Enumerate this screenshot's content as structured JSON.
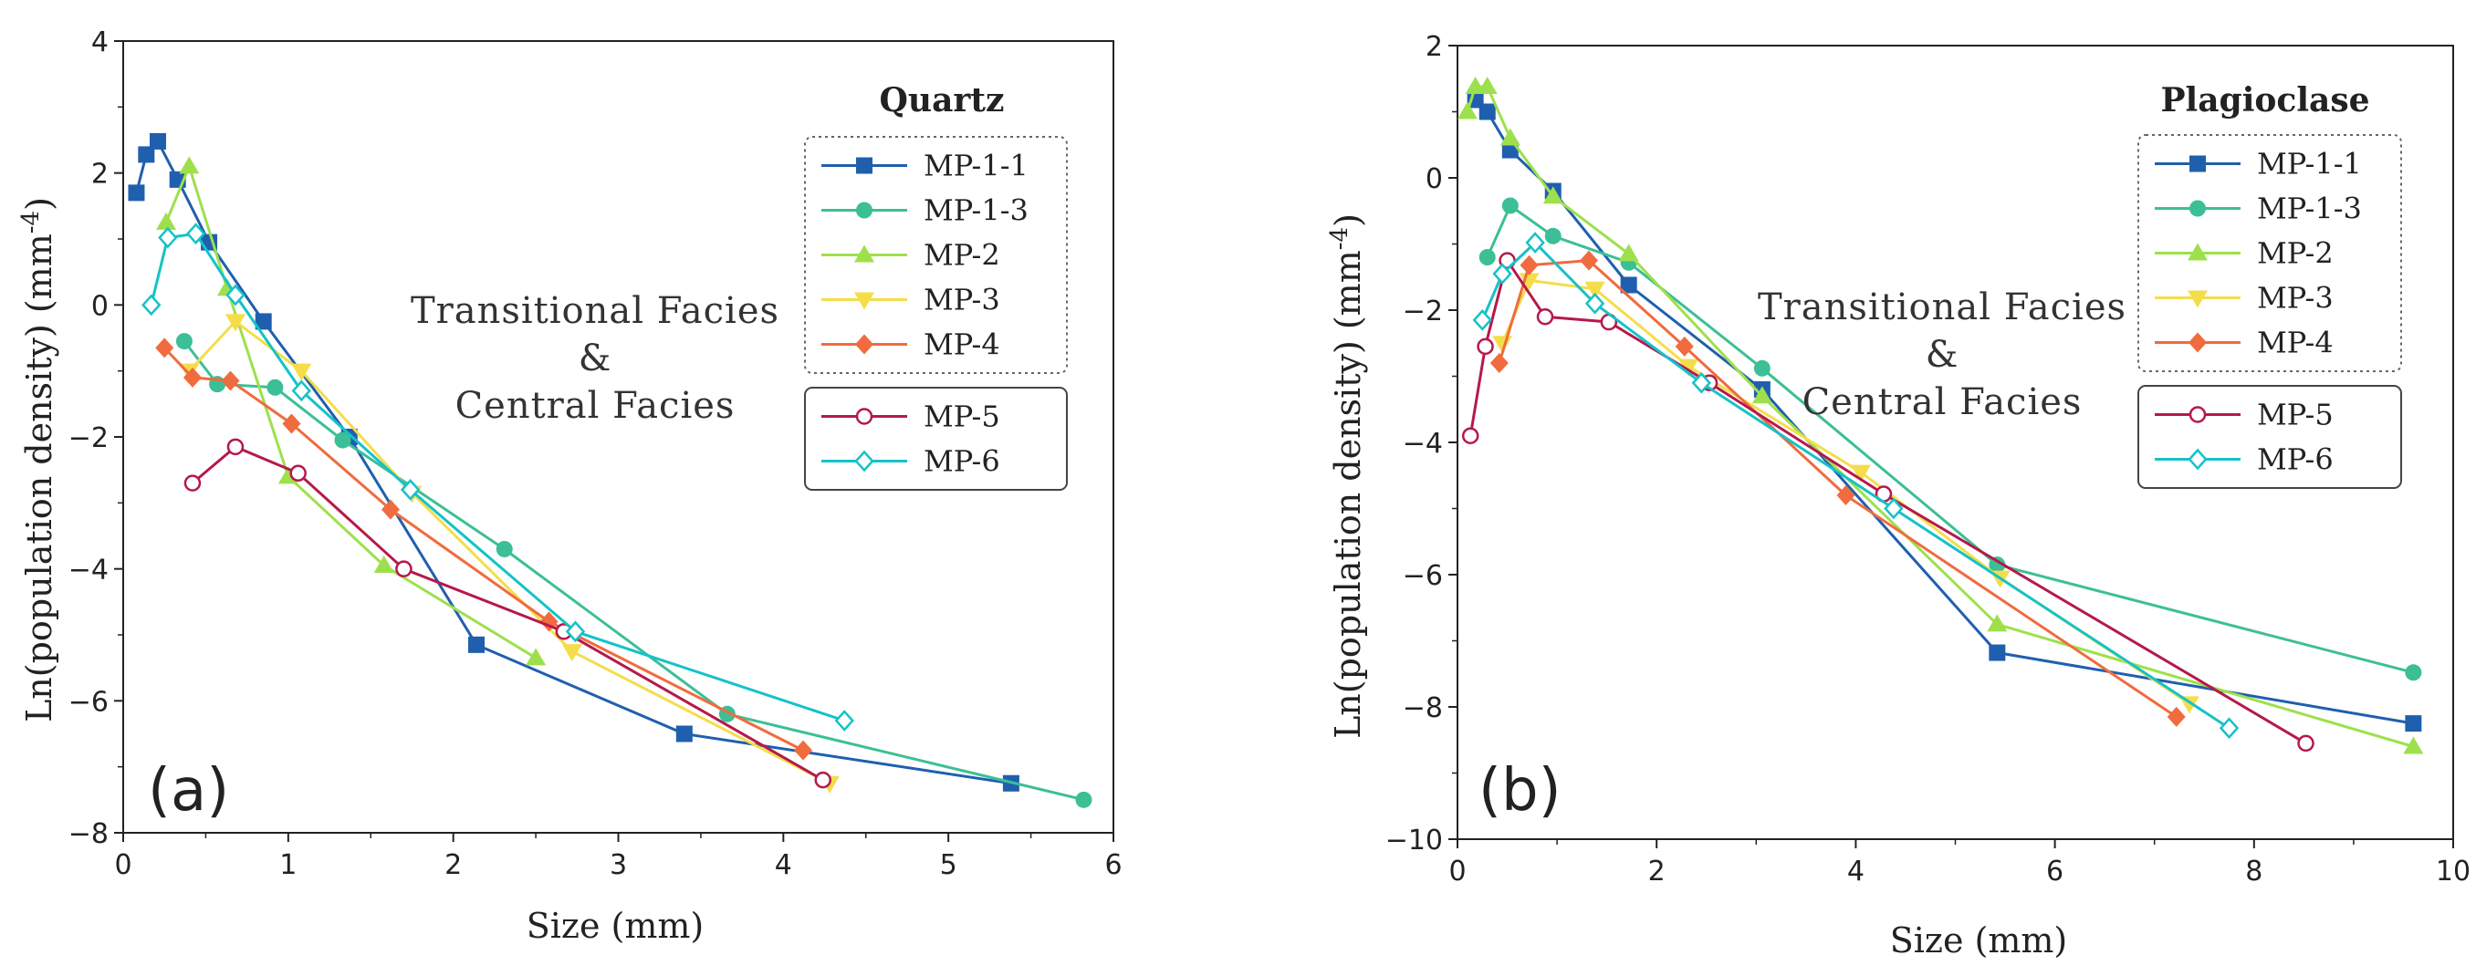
{
  "chart_data": [
    {
      "type": "line",
      "panel_label": "(a)",
      "title": "Quartz",
      "annotation_lines": [
        "Transitional Facies",
        "&",
        "Central Facies"
      ],
      "xlabel": "Size (mm)",
      "ylabel": "Ln(population density) (mm",
      "ylabel_sup": "-4",
      "ylabel_close": ")",
      "xlim": [
        0,
        6
      ],
      "ylim": [
        -8,
        4
      ],
      "xticks": [
        0,
        1,
        2,
        3,
        4,
        5,
        6
      ],
      "yticks": [
        -8,
        -6,
        -4,
        -2,
        0,
        2,
        4
      ],
      "xtick_labels": [
        "0",
        "1",
        "2",
        "3",
        "4",
        "5",
        "6"
      ],
      "ytick_labels": [
        "−8",
        "−6",
        "−4",
        "−2",
        "0",
        "2",
        "4"
      ],
      "legend_groups": [
        [
          "MP-1-1",
          "MP-1-3",
          "MP-2",
          "MP-3",
          "MP-4"
        ],
        [
          "MP-5",
          "MP-6"
        ]
      ],
      "series": [
        {
          "name": "MP-1-1",
          "color": "#1f5fae",
          "marker": "square",
          "x": [
            0.08,
            0.14,
            0.21,
            0.33,
            0.52,
            0.85,
            1.37,
            2.14,
            3.4,
            5.38
          ],
          "y": [
            1.7,
            2.28,
            2.48,
            1.9,
            0.95,
            -0.25,
            -2.0,
            -5.15,
            -6.5,
            -7.25
          ]
        },
        {
          "name": "MP-1-3",
          "color": "#3cbf96",
          "marker": "circle",
          "x": [
            0.37,
            0.57,
            0.92,
            1.33,
            2.31,
            3.66,
            5.82
          ],
          "y": [
            -0.55,
            -1.2,
            -1.25,
            -2.05,
            -3.7,
            -6.2,
            -7.5
          ]
        },
        {
          "name": "MP-2",
          "color": "#9ee04c",
          "marker": "triangle",
          "x": [
            0.26,
            0.4,
            0.63,
            1.0,
            1.58,
            2.5
          ],
          "y": [
            1.25,
            2.1,
            0.25,
            -2.6,
            -3.95,
            -5.35
          ]
        },
        {
          "name": "MP-3",
          "color": "#f5dd4a",
          "marker": "triangle-down",
          "x": [
            0.4,
            0.68,
            1.08,
            1.75,
            2.72,
            4.28
          ],
          "y": [
            -1.0,
            -0.25,
            -1.0,
            -2.85,
            -5.25,
            -7.25
          ]
        },
        {
          "name": "MP-4",
          "color": "#f06b3e",
          "marker": "diamond",
          "x": [
            0.25,
            0.42,
            0.65,
            1.02,
            1.62,
            2.58,
            4.12
          ],
          "y": [
            -0.65,
            -1.1,
            -1.15,
            -1.8,
            -3.1,
            -4.8,
            -6.75
          ]
        },
        {
          "name": "MP-5",
          "color": "#b5194a",
          "marker": "circle-open",
          "x": [
            0.42,
            0.68,
            1.06,
            1.7,
            2.67,
            4.24
          ],
          "y": [
            -2.7,
            -2.15,
            -2.55,
            -4.0,
            -4.95,
            -7.2
          ]
        },
        {
          "name": "MP-6",
          "color": "#15c2c8",
          "marker": "diamond-open",
          "x": [
            0.17,
            0.27,
            0.44,
            0.68,
            1.08,
            1.74,
            2.74,
            4.37
          ],
          "y": [
            0.0,
            1.02,
            1.08,
            0.15,
            -1.3,
            -2.8,
            -4.95,
            -6.3
          ]
        }
      ]
    },
    {
      "type": "line",
      "panel_label": "(b)",
      "title": "Plagioclase",
      "annotation_lines": [
        "Transitional Facies",
        "&",
        "Central Facies"
      ],
      "xlabel": "Size (mm)",
      "ylabel": "Ln(population density) (mm",
      "ylabel_sup": "-4",
      "ylabel_close": ")",
      "xlim": [
        0,
        10
      ],
      "ylim": [
        -10,
        2
      ],
      "xticks": [
        0,
        2,
        4,
        6,
        8,
        10
      ],
      "yticks": [
        -10,
        -8,
        -6,
        -4,
        -2,
        0,
        2
      ],
      "xtick_labels": [
        "0",
        "2",
        "4",
        "6",
        "8",
        "10"
      ],
      "ytick_labels": [
        "−10",
        "−8",
        "−6",
        "−4",
        "−2",
        "0",
        "2"
      ],
      "legend_groups": [
        [
          "MP-1-1",
          "MP-1-3",
          "MP-2",
          "MP-3",
          "MP-4"
        ],
        [
          "MP-5",
          "MP-6"
        ]
      ],
      "series": [
        {
          "name": "MP-1-1",
          "color": "#1f5fae",
          "marker": "square",
          "x": [
            0.18,
            0.3,
            0.53,
            0.96,
            1.72,
            3.06,
            5.42,
            9.6
          ],
          "y": [
            1.18,
            1.0,
            0.42,
            -0.2,
            -1.62,
            -3.2,
            -7.18,
            -8.25
          ]
        },
        {
          "name": "MP-1-3",
          "color": "#3cbf96",
          "marker": "circle",
          "x": [
            0.3,
            0.53,
            0.96,
            1.72,
            3.06,
            5.42,
            9.6
          ],
          "y": [
            -1.2,
            -0.42,
            -0.88,
            -1.28,
            -2.88,
            -5.85,
            -7.48
          ]
        },
        {
          "name": "MP-2",
          "color": "#9ee04c",
          "marker": "triangle",
          "x": [
            0.1,
            0.18,
            0.3,
            0.53,
            0.96,
            1.72,
            3.06,
            5.42,
            9.6
          ],
          "y": [
            1.0,
            1.38,
            1.38,
            0.6,
            -0.28,
            -1.15,
            -3.3,
            -6.75,
            -8.6
          ]
        },
        {
          "name": "MP-3",
          "color": "#f5dd4a",
          "marker": "triangle-down",
          "x": [
            0.45,
            0.72,
            1.38,
            2.32,
            4.05,
            5.45,
            7.35
          ],
          "y": [
            -2.5,
            -1.55,
            -1.68,
            -2.85,
            -4.45,
            -6.05,
            -7.95
          ]
        },
        {
          "name": "MP-4",
          "color": "#f06b3e",
          "marker": "diamond",
          "x": [
            0.42,
            0.72,
            1.32,
            2.28,
            3.9,
            7.22
          ],
          "y": [
            -2.8,
            -1.32,
            -1.25,
            -2.55,
            -4.8,
            -8.15
          ]
        },
        {
          "name": "MP-5",
          "color": "#b5194a",
          "marker": "circle-open",
          "x": [
            0.13,
            0.28,
            0.5,
            0.88,
            1.52,
            2.53,
            4.28,
            8.52
          ],
          "y": [
            -3.9,
            -2.55,
            -1.25,
            -2.1,
            -2.18,
            -3.1,
            -4.78,
            -8.55
          ]
        },
        {
          "name": "MP-6",
          "color": "#15c2c8",
          "marker": "diamond-open",
          "x": [
            0.25,
            0.45,
            0.78,
            1.38,
            2.45,
            4.38,
            7.75
          ],
          "y": [
            -2.15,
            -1.45,
            -0.98,
            -1.9,
            -3.1,
            -5.0,
            -8.32
          ]
        }
      ]
    }
  ]
}
